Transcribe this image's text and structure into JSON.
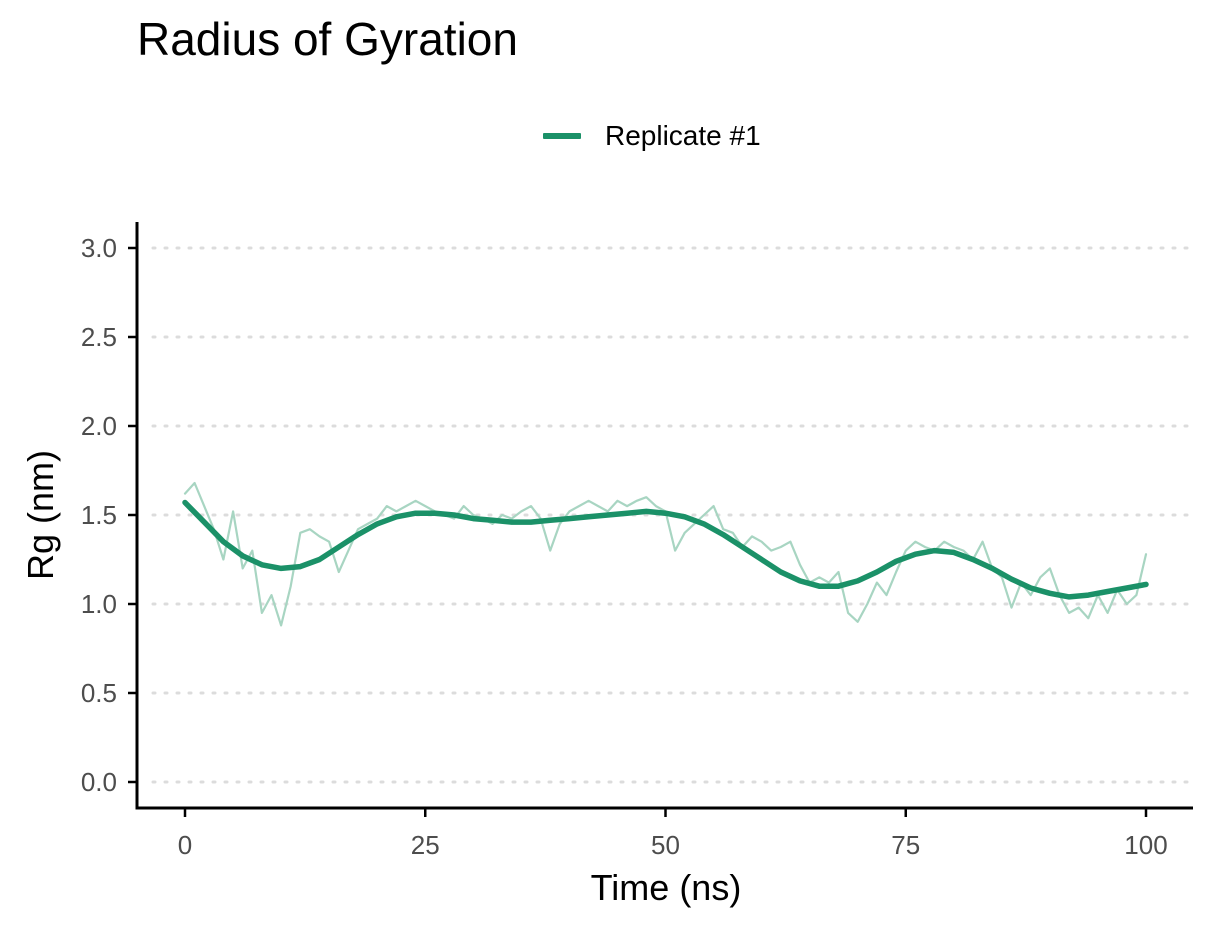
{
  "chart_data": {
    "type": "line",
    "title": "Radius of Gyration",
    "xlabel": "Time (ns)",
    "ylabel": "Rg (nm)",
    "xlim": [
      0,
      100
    ],
    "ylim": [
      0,
      3
    ],
    "x_ticks": [
      0,
      25,
      50,
      75,
      100
    ],
    "x_tick_labels": [
      "0",
      "25",
      "50",
      "75",
      "100"
    ],
    "y_ticks": [
      0,
      0.5,
      1,
      1.5,
      2,
      2.5,
      3
    ],
    "y_tick_labels": [
      "0.0",
      "0.5",
      "1.0",
      "1.5",
      "2.0",
      "2.5",
      "3.0"
    ],
    "grid": "horizontal dotted",
    "legend_position": "top",
    "colors": {
      "series": "#1b9168",
      "raw": "#a8d5c2",
      "grid": "#dcdcdc",
      "axis": "#000000"
    },
    "series": [
      {
        "name": "Replicate #1",
        "kind": "raw",
        "x": [
          0,
          1,
          2,
          3,
          4,
          5,
          6,
          7,
          8,
          9,
          10,
          11,
          12,
          13,
          14,
          15,
          16,
          17,
          18,
          19,
          20,
          21,
          22,
          23,
          24,
          25,
          26,
          27,
          28,
          29,
          30,
          31,
          32,
          33,
          34,
          35,
          36,
          37,
          38,
          39,
          40,
          41,
          42,
          43,
          44,
          45,
          46,
          47,
          48,
          49,
          50,
          51,
          52,
          53,
          54,
          55,
          56,
          57,
          58,
          59,
          60,
          61,
          62,
          63,
          64,
          65,
          66,
          67,
          68,
          69,
          70,
          71,
          72,
          73,
          74,
          75,
          76,
          77,
          78,
          79,
          80,
          81,
          82,
          83,
          84,
          85,
          86,
          87,
          88,
          89,
          90,
          91,
          92,
          93,
          94,
          95,
          96,
          97,
          98,
          99,
          100
        ],
        "y": [
          1.62,
          1.68,
          1.55,
          1.42,
          1.25,
          1.52,
          1.2,
          1.3,
          0.95,
          1.05,
          0.88,
          1.1,
          1.4,
          1.42,
          1.38,
          1.35,
          1.18,
          1.3,
          1.42,
          1.45,
          1.48,
          1.55,
          1.52,
          1.55,
          1.58,
          1.55,
          1.52,
          1.5,
          1.48,
          1.55,
          1.5,
          1.48,
          1.45,
          1.5,
          1.48,
          1.52,
          1.55,
          1.48,
          1.3,
          1.45,
          1.52,
          1.55,
          1.58,
          1.55,
          1.52,
          1.58,
          1.55,
          1.58,
          1.6,
          1.55,
          1.52,
          1.3,
          1.4,
          1.45,
          1.5,
          1.55,
          1.42,
          1.4,
          1.32,
          1.38,
          1.35,
          1.3,
          1.32,
          1.35,
          1.22,
          1.12,
          1.15,
          1.12,
          1.18,
          0.95,
          0.9,
          1.0,
          1.12,
          1.05,
          1.18,
          1.3,
          1.35,
          1.32,
          1.3,
          1.35,
          1.32,
          1.3,
          1.25,
          1.35,
          1.2,
          1.15,
          0.98,
          1.12,
          1.05,
          1.15,
          1.2,
          1.05,
          0.95,
          0.98,
          0.92,
          1.05,
          0.95,
          1.08,
          1.0,
          1.05,
          1.28
        ]
      },
      {
        "name": "Replicate #1",
        "kind": "smoothed",
        "x": [
          0,
          2,
          4,
          6,
          8,
          10,
          12,
          14,
          16,
          18,
          20,
          22,
          24,
          26,
          28,
          30,
          32,
          34,
          36,
          38,
          40,
          42,
          44,
          46,
          48,
          50,
          52,
          54,
          56,
          58,
          60,
          62,
          64,
          66,
          68,
          70,
          72,
          74,
          76,
          78,
          80,
          82,
          84,
          86,
          88,
          90,
          92,
          94,
          96,
          98,
          100
        ],
        "y": [
          1.57,
          1.46,
          1.35,
          1.27,
          1.22,
          1.2,
          1.21,
          1.25,
          1.32,
          1.39,
          1.45,
          1.49,
          1.51,
          1.51,
          1.5,
          1.48,
          1.47,
          1.46,
          1.46,
          1.47,
          1.48,
          1.49,
          1.5,
          1.51,
          1.52,
          1.51,
          1.49,
          1.45,
          1.39,
          1.32,
          1.25,
          1.18,
          1.13,
          1.1,
          1.1,
          1.13,
          1.18,
          1.24,
          1.28,
          1.3,
          1.29,
          1.25,
          1.2,
          1.14,
          1.09,
          1.06,
          1.04,
          1.05,
          1.07,
          1.09,
          1.11
        ]
      }
    ]
  }
}
